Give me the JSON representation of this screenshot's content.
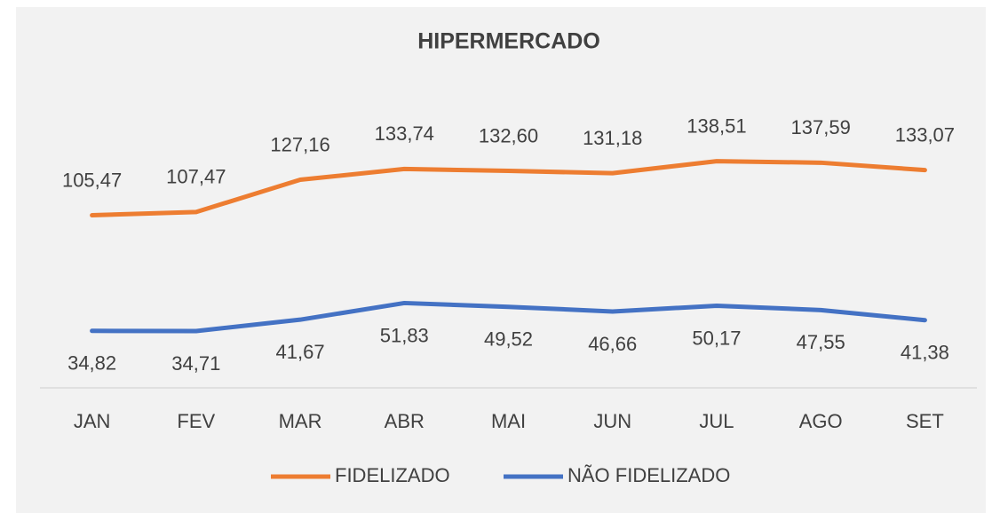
{
  "chart_data": {
    "type": "line",
    "title": "HIPERMERCADO",
    "categories": [
      "JAN",
      "FEV",
      "MAR",
      "ABR",
      "MAI",
      "JUN",
      "JUL",
      "AGO",
      "SET"
    ],
    "series": [
      {
        "name": "FIDELIZADO",
        "color": "#ed7d31",
        "values": [
          105.47,
          107.47,
          127.16,
          133.74,
          132.6,
          131.18,
          138.51,
          137.59,
          133.07
        ],
        "value_labels": [
          "105,47",
          "107,47",
          "127,16",
          "133,74",
          "132,60",
          "131,18",
          "138,51",
          "137,59",
          "133,07"
        ]
      },
      {
        "name": "NÃO FIDELIZADO",
        "color": "#4472c4",
        "values": [
          34.82,
          34.71,
          41.67,
          51.83,
          49.52,
          46.66,
          50.17,
          47.55,
          41.38
        ],
        "value_labels": [
          "34,82",
          "34,71",
          "41,67",
          "51,83",
          "49,52",
          "46,66",
          "50,17",
          "47,55",
          "41,38"
        ]
      }
    ],
    "ylim": [
      0,
      160
    ],
    "grid": false,
    "legend": "bottom"
  }
}
